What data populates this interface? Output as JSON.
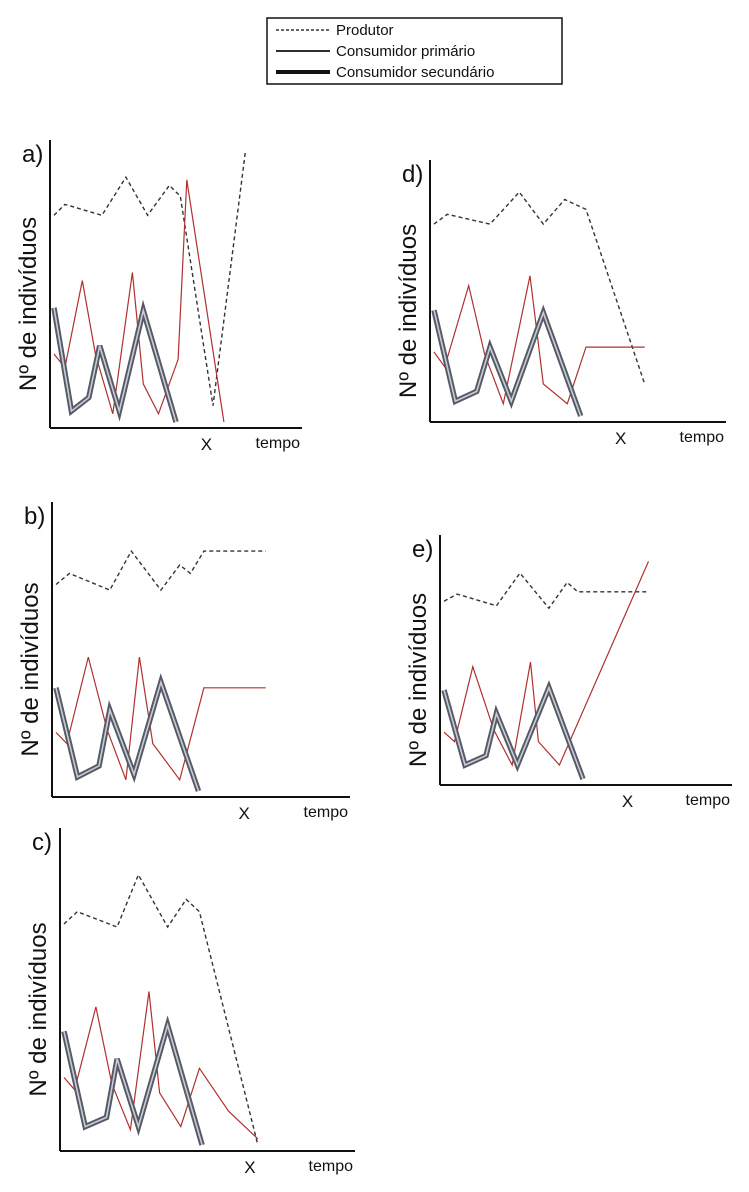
{
  "legend": {
    "entries": [
      {
        "label": "Produtor",
        "style": "dashed"
      },
      {
        "label": "Consumidor primário",
        "style": "thin"
      },
      {
        "label": "Consumidor secundário",
        "style": "thick"
      }
    ]
  },
  "colors": {
    "produtor": "#333333",
    "consumidor_primario": "#b03030",
    "consumidor_secundario": "#555a66",
    "axis": "#111111"
  },
  "chart_data": [
    {
      "type": "line",
      "panel": "a)",
      "ylabel": "Nº de indivíduos",
      "xlabel": "tempo",
      "x_marker": "X",
      "x_marker_value": 7,
      "xlim": [
        0,
        9
      ],
      "ylim": [
        0,
        10
      ],
      "series": [
        {
          "name": "Produtor",
          "points": [
            [
              0,
              7.6
            ],
            [
              0.5,
              8.0
            ],
            [
              2.2,
              7.6
            ],
            [
              3.3,
              9.0
            ],
            [
              4.3,
              7.6
            ],
            [
              5.3,
              8.7
            ],
            [
              5.8,
              8.3
            ],
            [
              7.3,
              0.6
            ],
            [
              8.8,
              10.0
            ]
          ]
        },
        {
          "name": "Consumidor primário",
          "points": [
            [
              0,
              2.5
            ],
            [
              0.5,
              2.0
            ],
            [
              1.3,
              5.2
            ],
            [
              1.9,
              2.5
            ],
            [
              2.7,
              0.3
            ],
            [
              3.6,
              5.5
            ],
            [
              4.1,
              1.4
            ],
            [
              4.8,
              0.3
            ],
            [
              5.7,
              2.3
            ],
            [
              6.1,
              8.9
            ],
            [
              7.8,
              0
            ]
          ]
        },
        {
          "name": "Consumidor secundário",
          "points": [
            [
              0,
              4.2
            ],
            [
              0.8,
              0.4
            ],
            [
              1.6,
              0.9
            ],
            [
              2.1,
              2.8
            ],
            [
              3.0,
              0.4
            ],
            [
              4.1,
              4.1
            ],
            [
              5.6,
              0
            ]
          ]
        }
      ]
    },
    {
      "type": "line",
      "panel": "b)",
      "ylabel": "Nº de indivíduos",
      "xlabel": "tempo",
      "x_marker": "X",
      "x_marker_value": 7,
      "xlim": [
        0,
        9
      ],
      "ylim": [
        0,
        10
      ],
      "series": [
        {
          "name": "Produtor",
          "points": [
            [
              0,
              7.4
            ],
            [
              0.5,
              7.8
            ],
            [
              2.0,
              7.2
            ],
            [
              2.8,
              8.6
            ],
            [
              3.9,
              7.2
            ],
            [
              4.6,
              8.1
            ],
            [
              5.0,
              7.8
            ],
            [
              5.5,
              8.6
            ],
            [
              7.8,
              8.6
            ]
          ]
        },
        {
          "name": "Consumidor primário",
          "points": [
            [
              0,
              2.1
            ],
            [
              0.4,
              1.7
            ],
            [
              1.2,
              4.8
            ],
            [
              1.9,
              2.2
            ],
            [
              2.6,
              0.4
            ],
            [
              3.1,
              4.8
            ],
            [
              3.6,
              1.7
            ],
            [
              4.6,
              0.4
            ],
            [
              5.5,
              3.7
            ],
            [
              7.8,
              3.7
            ]
          ]
        },
        {
          "name": "Consumidor secundário",
          "points": [
            [
              0,
              3.7
            ],
            [
              0.8,
              0.5
            ],
            [
              1.6,
              0.9
            ],
            [
              2.0,
              2.9
            ],
            [
              2.9,
              0.6
            ],
            [
              3.9,
              3.9
            ],
            [
              5.3,
              0
            ]
          ]
        }
      ]
    },
    {
      "type": "line",
      "panel": "c)",
      "ylabel": "Nº de indivíduos",
      "xlabel": "tempo",
      "x_marker": "X",
      "x_marker_value": 7,
      "xlim": [
        0,
        9
      ],
      "ylim": [
        0,
        10
      ],
      "series": [
        {
          "name": "Produtor",
          "points": [
            [
              0,
              7.2
            ],
            [
              0.5,
              7.6
            ],
            [
              2.0,
              7.1
            ],
            [
              2.8,
              8.8
            ],
            [
              3.9,
              7.1
            ],
            [
              4.6,
              8.0
            ],
            [
              5.1,
              7.6
            ],
            [
              7.3,
              0
            ]
          ]
        },
        {
          "name": "Consumidor primário",
          "points": [
            [
              0,
              2.2
            ],
            [
              0.4,
              1.8
            ],
            [
              1.2,
              4.5
            ],
            [
              1.8,
              2.0
            ],
            [
              2.5,
              0.5
            ],
            [
              3.2,
              5.0
            ],
            [
              3.6,
              1.7
            ],
            [
              4.4,
              0.6
            ],
            [
              5.1,
              2.5
            ],
            [
              6.2,
              1.1
            ],
            [
              7.3,
              0.2
            ]
          ]
        },
        {
          "name": "Consumidor secundário",
          "points": [
            [
              0,
              3.7
            ],
            [
              0.8,
              0.6
            ],
            [
              1.6,
              0.9
            ],
            [
              2.0,
              2.8
            ],
            [
              2.8,
              0.6
            ],
            [
              3.9,
              3.9
            ],
            [
              5.2,
              0
            ]
          ]
        }
      ]
    },
    {
      "type": "line",
      "panel": "d)",
      "ylabel": "Nº de indivíduos",
      "xlabel": "tempo",
      "x_marker": "X",
      "x_marker_value": 7,
      "xlim": [
        0,
        9
      ],
      "ylim": [
        0,
        10
      ],
      "series": [
        {
          "name": "Produtor",
          "points": [
            [
              0,
              7.8
            ],
            [
              0.5,
              8.2
            ],
            [
              2.1,
              7.8
            ],
            [
              3.2,
              9.1
            ],
            [
              4.1,
              7.8
            ],
            [
              4.9,
              8.8
            ],
            [
              5.7,
              8.4
            ],
            [
              7.9,
              1.3
            ]
          ]
        },
        {
          "name": "Consumidor primário",
          "points": [
            [
              0,
              2.6
            ],
            [
              0.4,
              2.0
            ],
            [
              1.3,
              5.3
            ],
            [
              1.9,
              2.5
            ],
            [
              2.6,
              0.5
            ],
            [
              3.6,
              5.7
            ],
            [
              4.1,
              1.3
            ],
            [
              5.0,
              0.5
            ],
            [
              5.7,
              2.8
            ],
            [
              7.9,
              2.8
            ]
          ]
        },
        {
          "name": "Consumidor secundário",
          "points": [
            [
              0,
              4.3
            ],
            [
              0.8,
              0.6
            ],
            [
              1.6,
              1.0
            ],
            [
              2.1,
              2.8
            ],
            [
              2.9,
              0.6
            ],
            [
              4.1,
              4.2
            ],
            [
              5.5,
              0
            ]
          ]
        }
      ]
    },
    {
      "type": "line",
      "panel": "e)",
      "ylabel": "Nº de indivíduos",
      "xlabel": "tempo",
      "x_marker": "X",
      "x_marker_value": 7,
      "xlim": [
        0,
        9
      ],
      "ylim": [
        0,
        10
      ],
      "series": [
        {
          "name": "Produtor",
          "points": [
            [
              0,
              7.6
            ],
            [
              0.5,
              7.9
            ],
            [
              2.0,
              7.4
            ],
            [
              2.9,
              8.8
            ],
            [
              4.0,
              7.3
            ],
            [
              4.7,
              8.4
            ],
            [
              5.1,
              8.0
            ],
            [
              7.8,
              8.0
            ]
          ]
        },
        {
          "name": "Consumidor primário",
          "points": [
            [
              0,
              2.0
            ],
            [
              0.4,
              1.6
            ],
            [
              1.1,
              4.8
            ],
            [
              1.9,
              2.1
            ],
            [
              2.6,
              0.6
            ],
            [
              3.3,
              5.0
            ],
            [
              3.6,
              1.6
            ],
            [
              4.4,
              0.6
            ],
            [
              7.8,
              9.3
            ]
          ]
        },
        {
          "name": "Consumidor secundário",
          "points": [
            [
              0,
              3.8
            ],
            [
              0.8,
              0.6
            ],
            [
              1.6,
              1.0
            ],
            [
              2.0,
              2.8
            ],
            [
              2.8,
              0.6
            ],
            [
              4.0,
              3.9
            ],
            [
              5.3,
              0
            ]
          ]
        }
      ]
    }
  ]
}
